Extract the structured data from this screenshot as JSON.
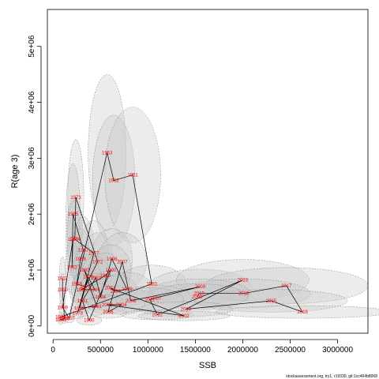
{
  "chart_data": {
    "type": "scatter",
    "title": "",
    "xlabel": "SSB",
    "ylabel": "R(age 3)",
    "xlim": [
      -60000,
      3320000
    ],
    "ylim": [
      -130000,
      5660000
    ],
    "x_ticks": [
      0,
      500000,
      1000000,
      1500000,
      2000000,
      2500000,
      3000000
    ],
    "x_tick_labels": [
      "0",
      "500000",
      "1000000",
      "1500000",
      "2000000",
      "2500000",
      "3000000"
    ],
    "y_ticks": [
      0,
      1000000,
      2000000,
      3000000,
      4000000,
      5000000
    ],
    "y_tick_labels": [
      "0e+00",
      "1e+06",
      "2e+06",
      "3e+06",
      "4e+06",
      "5e+06"
    ],
    "colors": {
      "point_label": "#ff0000",
      "path": "#000000",
      "ellipse_fill": "#c8c8c8",
      "ellipse_stroke": "#888888"
    },
    "series": [
      {
        "points": [
          {
            "year": "1953",
            "x": 570000,
            "y": 3100000
          },
          {
            "year": "1952",
            "x": 640000,
            "y": 2600000
          },
          {
            "year": "1951",
            "x": 840000,
            "y": 2700000
          },
          {
            "year": "1973",
            "x": 240000,
            "y": 2300000
          },
          {
            "year": "1965",
            "x": 210000,
            "y": 2000000
          },
          {
            "year": "1960",
            "x": 210000,
            "y": 1550000
          },
          {
            "year": "1974",
            "x": 230000,
            "y": 1550000
          },
          {
            "year": "1967",
            "x": 320000,
            "y": 1350000
          },
          {
            "year": "1977",
            "x": 430000,
            "y": 1300000
          },
          {
            "year": "1968",
            "x": 290000,
            "y": 1200000
          },
          {
            "year": "1972",
            "x": 470000,
            "y": 1150000
          },
          {
            "year": "1998",
            "x": 620000,
            "y": 1200000
          },
          {
            "year": "2007",
            "x": 730000,
            "y": 1150000
          },
          {
            "year": "1962",
            "x": 200000,
            "y": 1050000
          },
          {
            "year": "1983",
            "x": 330000,
            "y": 1000000
          },
          {
            "year": "1990",
            "x": 610000,
            "y": 1000000
          },
          {
            "year": "1912",
            "x": 100000,
            "y": 850000
          },
          {
            "year": "1979",
            "x": 370000,
            "y": 880000
          },
          {
            "year": "1989",
            "x": 550000,
            "y": 900000
          },
          {
            "year": "1993",
            "x": 450000,
            "y": 860000
          },
          {
            "year": "1969",
            "x": 250000,
            "y": 750000
          },
          {
            "year": "1970",
            "x": 340000,
            "y": 700000
          },
          {
            "year": "1950",
            "x": 1040000,
            "y": 750000
          },
          {
            "year": "1986",
            "x": 300000,
            "y": 650000
          },
          {
            "year": "1984",
            "x": 440000,
            "y": 650000
          },
          {
            "year": "1919",
            "x": 100000,
            "y": 650000
          },
          {
            "year": "2001",
            "x": 600000,
            "y": 680000
          },
          {
            "year": "2000",
            "x": 660000,
            "y": 620000
          },
          {
            "year": "1999",
            "x": 780000,
            "y": 660000
          },
          {
            "year": "2009",
            "x": 1550000,
            "y": 700000
          },
          {
            "year": "2013",
            "x": 2000000,
            "y": 820000
          },
          {
            "year": "2017",
            "x": 2460000,
            "y": 720000
          },
          {
            "year": "2018",
            "x": 2010000,
            "y": 580000
          },
          {
            "year": "2019",
            "x": 1540000,
            "y": 580000
          },
          {
            "year": "2020",
            "x": 1520000,
            "y": 520000
          },
          {
            "year": "2015",
            "x": 2300000,
            "y": 450000
          },
          {
            "year": "2016",
            "x": 2630000,
            "y": 250000
          },
          {
            "year": "2010",
            "x": 1080000,
            "y": 500000
          },
          {
            "year": "2008",
            "x": 820000,
            "y": 450000
          },
          {
            "year": "2011",
            "x": 1020000,
            "y": 470000
          },
          {
            "year": "1994",
            "x": 500000,
            "y": 520000
          },
          {
            "year": "1991",
            "x": 310000,
            "y": 450000
          },
          {
            "year": "2003",
            "x": 570000,
            "y": 380000
          },
          {
            "year": "2004",
            "x": 720000,
            "y": 380000
          },
          {
            "year": "1981",
            "x": 460000,
            "y": 350000
          },
          {
            "year": "1959",
            "x": 100000,
            "y": 330000
          },
          {
            "year": "1980",
            "x": 280000,
            "y": 320000
          },
          {
            "year": "2014",
            "x": 1400000,
            "y": 300000
          },
          {
            "year": "2006",
            "x": 580000,
            "y": 250000
          },
          {
            "year": "1978",
            "x": 260000,
            "y": 230000
          },
          {
            "year": "2012",
            "x": 1100000,
            "y": 200000
          },
          {
            "year": "1944",
            "x": 80000,
            "y": 160000
          },
          {
            "year": "1930",
            "x": 120000,
            "y": 130000
          },
          {
            "year": "1940",
            "x": 80000,
            "y": 110000
          },
          {
            "year": "1957",
            "x": 170000,
            "y": 140000
          },
          {
            "year": "2002",
            "x": 1380000,
            "y": 180000
          },
          {
            "year": "1990",
            "x": 380000,
            "y": 100000
          }
        ]
      }
    ]
  },
  "footer": {
    "text": "stockassessment.org, try1, r19330, git:1cc464b8068"
  }
}
